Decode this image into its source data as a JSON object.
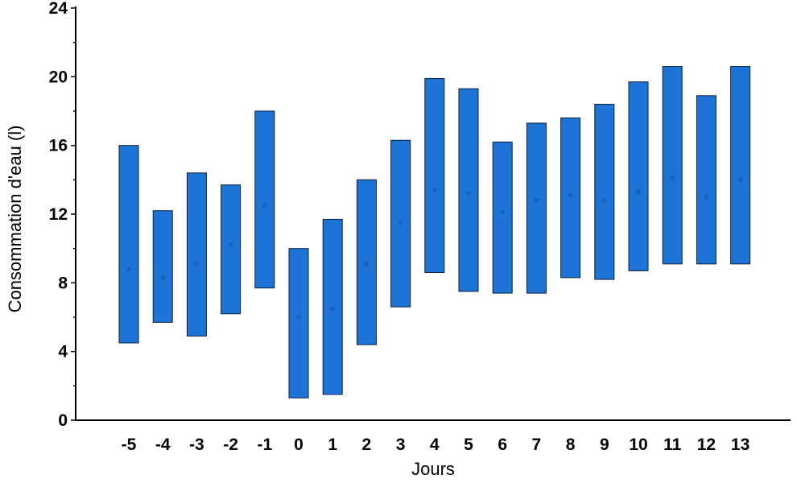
{
  "chart_data": {
    "type": "bar",
    "subtype": "floating-range-with-mean",
    "title": "",
    "xlabel": "Jours",
    "ylabel": "Consommation d'eau (l)",
    "ylim": [
      0,
      24
    ],
    "yticks": [
      "0",
      "4",
      "8",
      "12",
      "16",
      "20",
      "24"
    ],
    "categories": [
      "-5",
      "-4",
      "-3",
      "-2",
      "-1",
      "0",
      "1",
      "2",
      "3",
      "4",
      "5",
      "6",
      "7",
      "8",
      "9",
      "10",
      "11",
      "12",
      "13"
    ],
    "series": [
      {
        "low": [
          4.5,
          5.7,
          4.9,
          6.2,
          7.7,
          1.3,
          1.5,
          4.4,
          6.6,
          8.6,
          7.5,
          7.4,
          7.4,
          8.3,
          8.2,
          8.7,
          9.1,
          9.1,
          9.1
        ],
        "high": [
          16.0,
          12.2,
          14.4,
          13.7,
          18.0,
          10.0,
          11.7,
          14.0,
          16.3,
          19.9,
          19.3,
          16.2,
          17.3,
          17.6,
          18.4,
          19.7,
          20.6,
          18.9,
          20.6
        ],
        "mean": [
          8.8,
          8.3,
          9.1,
          10.2,
          12.5,
          6.0,
          6.5,
          9.1,
          11.5,
          13.4,
          13.2,
          12.1,
          12.8,
          13.1,
          12.8,
          13.3,
          14.1,
          13.0,
          14.0
        ]
      }
    ],
    "grid": false,
    "legend": "none",
    "colors": {
      "bar": "#1e74d6",
      "bar_stroke": "#0d1f3c",
      "mean_marker": "#1662c0"
    }
  }
}
